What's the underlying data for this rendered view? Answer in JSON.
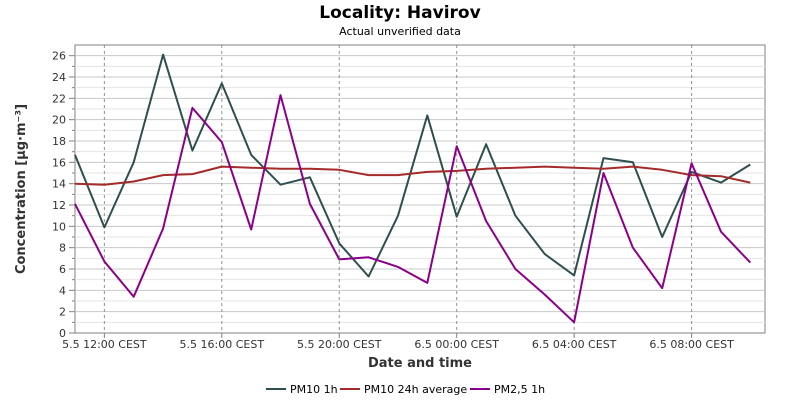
{
  "chart_data": {
    "type": "line",
    "title": "Locality: Havirov",
    "subtitle": "Actual unverified data",
    "xlabel": "Date and time",
    "ylabel": "Concentration [µg·m⁻³]",
    "ylim": [
      0,
      27
    ],
    "yticks": [
      0,
      2,
      4,
      6,
      8,
      10,
      12,
      14,
      16,
      18,
      20,
      22,
      24,
      26
    ],
    "xlim": [
      0,
      23.5
    ],
    "x_tick_positions": [
      1,
      5,
      9,
      13,
      17,
      21
    ],
    "x_tick_labels": [
      "5.5 12:00 CEST",
      "5.5 16:00 CEST",
      "5.5 20:00 CEST",
      "6.5 00:00 CEST",
      "6.5 04:00 CEST",
      "6.5 08:00 CEST"
    ],
    "x": [
      0,
      1,
      2,
      3,
      4,
      5,
      6,
      7,
      8,
      9,
      10,
      11,
      12,
      13,
      14,
      15,
      16,
      17,
      18,
      19,
      20,
      21,
      22,
      23
    ],
    "grid": true,
    "legend_position": "bottom",
    "series": [
      {
        "name": "PM10 1h",
        "color": "#2f4f4f",
        "values": [
          16.7,
          9.9,
          16.0,
          26.1,
          17.1,
          23.4,
          16.7,
          13.9,
          14.6,
          8.4,
          5.3,
          11.0,
          20.4,
          10.9,
          17.7,
          11.0,
          7.4,
          5.4,
          16.4,
          16.0,
          9.0,
          15.1,
          14.1,
          15.8
        ]
      },
      {
        "name": "PM10 24h average",
        "color": "#a52a2a",
        "values": [
          14.0,
          13.9,
          14.2,
          14.8,
          14.9,
          15.6,
          15.5,
          15.4,
          15.4,
          15.3,
          14.8,
          14.8,
          15.1,
          15.2,
          15.4,
          15.5,
          15.6,
          15.5,
          15.4,
          15.6,
          15.3,
          14.8,
          14.7,
          14.1
        ]
      },
      {
        "name": "PM2,5 1h",
        "color": "#8b008b",
        "values": [
          12.1,
          6.7,
          3.4,
          9.8,
          21.1,
          17.9,
          9.7,
          22.3,
          12.1,
          6.9,
          7.1,
          6.2,
          4.7,
          17.5,
          10.5,
          6.0,
          3.6,
          1.0,
          15.0,
          8.0,
          4.2,
          15.9,
          9.5,
          6.6
        ]
      }
    ]
  }
}
